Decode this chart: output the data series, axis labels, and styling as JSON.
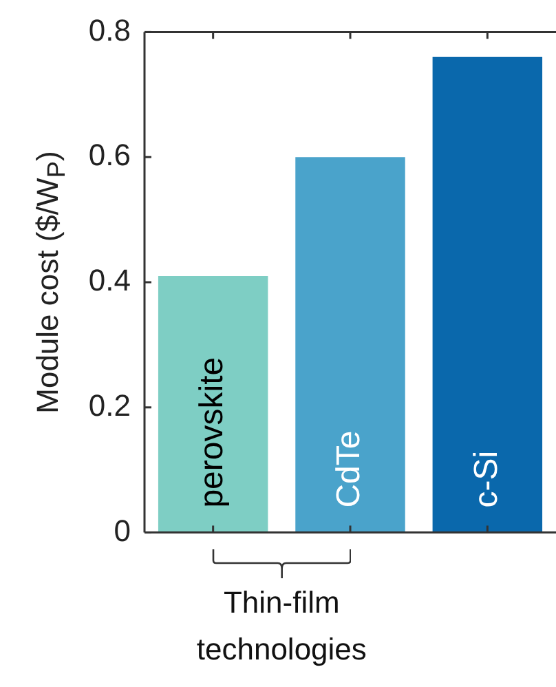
{
  "chart_data": {
    "type": "bar",
    "ylabel": "Module cost ($/W$_{P}$)",
    "categories": [
      "perovskite",
      "CdTe",
      "c-Si"
    ],
    "values": [
      0.41,
      0.6,
      0.76
    ],
    "colors": [
      "#7ecec4",
      "#4aa3cb",
      "#0a68ac"
    ],
    "ylim": [
      0,
      0.8
    ],
    "yticks": [
      0,
      0.2,
      0.4,
      0.6,
      0.8
    ],
    "grid": false,
    "legend": false,
    "annotations": [
      "Thin-film technologies"
    ]
  }
}
